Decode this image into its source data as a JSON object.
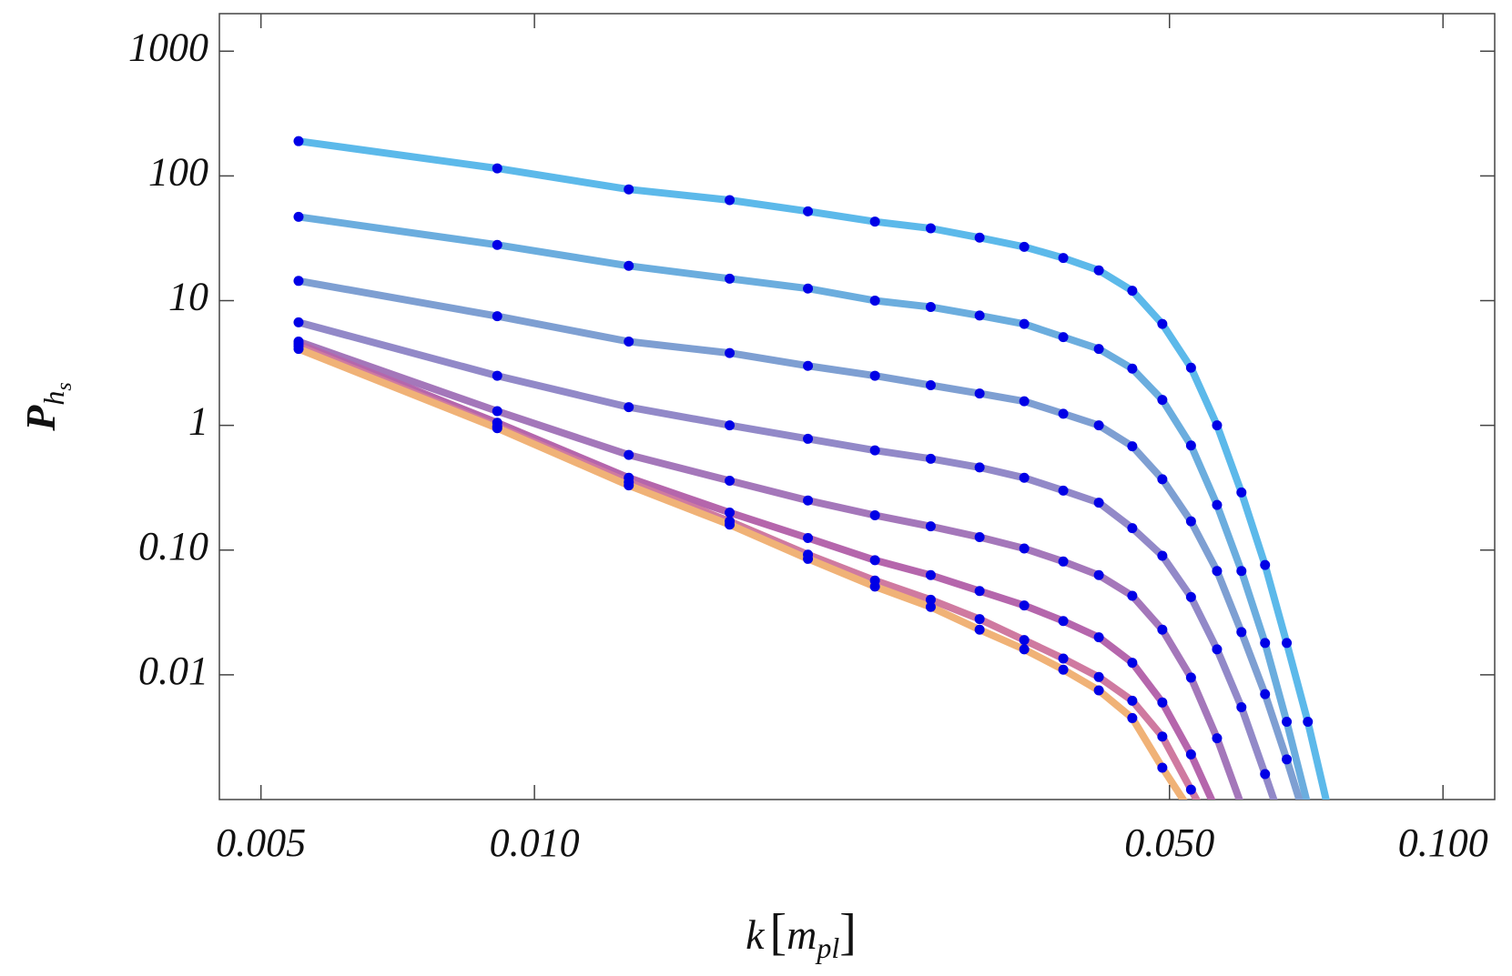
{
  "chart_data": {
    "type": "line",
    "xlabel": [
      "k",
      "[",
      "m",
      "pl",
      "]"
    ],
    "ylabel": [
      "P",
      "h",
      "s"
    ],
    "xscale": "log",
    "yscale": "log",
    "xlim": [
      0.0045,
      0.114
    ],
    "ylim": [
      0.001,
      2000
    ],
    "xticks": [
      0.005,
      {
        "value": 0.01,
        "label": "0.010"
      },
      {
        "value": 0.05,
        "label": "0.050"
      },
      {
        "value": 0.1,
        "label": "0.100"
      }
    ],
    "yticks": [
      1000,
      100,
      10,
      1,
      {
        "value": 0.1,
        "label": "0.10"
      },
      0.01
    ],
    "marker_color": "#0000e6",
    "x": [
      0.0055,
      0.0091,
      0.0127,
      0.0164,
      0.02,
      0.0237,
      0.0273,
      0.0309,
      0.0346,
      0.0382,
      0.0418,
      0.0455,
      0.0491,
      0.0528,
      0.0564,
      0.06,
      0.0637,
      0.0673,
      0.071,
      0.0746
    ],
    "series": [
      {
        "color": "#5cb9ea",
        "values": [
          190,
          115,
          78,
          64,
          52,
          43,
          38,
          32,
          27,
          22,
          17.5,
          12,
          6.5,
          2.9,
          1.0,
          0.29,
          0.076,
          0.018,
          0.0042,
          0.0009
        ]
      },
      {
        "color": "#6badde",
        "values": [
          47,
          28,
          19,
          15,
          12.5,
          10,
          8.9,
          7.6,
          6.5,
          5.1,
          4.1,
          2.85,
          1.6,
          0.69,
          0.23,
          0.068,
          0.018,
          0.0042,
          0.0009,
          null
        ]
      },
      {
        "color": "#7e9fd2",
        "values": [
          14.4,
          7.5,
          4.7,
          3.8,
          3.0,
          2.5,
          2.1,
          1.8,
          1.56,
          1.24,
          1.0,
          0.68,
          0.37,
          0.17,
          0.068,
          0.022,
          0.007,
          0.0021,
          0.0006,
          null
        ]
      },
      {
        "color": "#9289c8",
        "values": [
          6.7,
          2.5,
          1.4,
          1.0,
          0.78,
          0.63,
          0.54,
          0.46,
          0.38,
          0.3,
          0.24,
          0.15,
          0.09,
          0.042,
          0.016,
          0.0055,
          0.0016,
          0.0005,
          null,
          null
        ]
      },
      {
        "color": "#a477ba",
        "values": [
          4.7,
          1.3,
          0.58,
          0.36,
          0.25,
          0.19,
          0.155,
          0.127,
          0.103,
          0.081,
          0.063,
          0.043,
          0.023,
          0.0095,
          0.0031,
          0.0009,
          null,
          null,
          null,
          null
        ]
      },
      {
        "color": "#b566ac",
        "values": [
          4.5,
          1.05,
          0.38,
          0.2,
          0.125,
          0.083,
          0.063,
          0.047,
          0.036,
          0.027,
          0.02,
          0.0125,
          0.006,
          0.0023,
          0.0008,
          null,
          null,
          null,
          null,
          null
        ]
      },
      {
        "color": "#cf7aa0",
        "values": [
          4.3,
          0.98,
          0.35,
          0.17,
          0.092,
          0.057,
          0.04,
          0.028,
          0.019,
          0.0135,
          0.0096,
          0.0062,
          0.0032,
          0.0012,
          0.0005,
          null,
          null,
          null,
          null,
          null
        ]
      },
      {
        "color": "#f0b277",
        "values": [
          4.1,
          0.95,
          0.33,
          0.16,
          0.085,
          0.051,
          0.035,
          0.023,
          0.016,
          0.011,
          0.0075,
          0.0045,
          0.0018,
          0.0008,
          null,
          null,
          null,
          null,
          null,
          null
        ]
      }
    ]
  }
}
